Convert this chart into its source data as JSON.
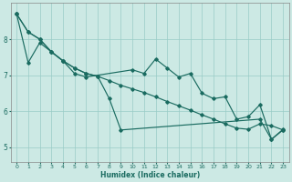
{
  "xlabel": "Humidex (Indice chaleur)",
  "xlim": [
    -0.5,
    23.5
  ],
  "ylim": [
    4.6,
    9.0
  ],
  "yticks": [
    5,
    6,
    7,
    8
  ],
  "xticks": [
    0,
    1,
    2,
    3,
    4,
    5,
    6,
    7,
    8,
    9,
    10,
    11,
    12,
    13,
    14,
    15,
    16,
    17,
    18,
    19,
    20,
    21,
    22,
    23
  ],
  "background_color": "#cce9e4",
  "grid_color": "#99ccc6",
  "line_color": "#1a6b60",
  "line1_x": [
    0,
    1,
    2,
    3,
    4,
    5,
    6,
    10,
    11,
    12,
    13,
    14,
    15,
    16,
    17,
    18,
    19,
    20,
    21,
    22,
    23
  ],
  "line1_y": [
    8.7,
    8.2,
    8.0,
    7.65,
    7.4,
    7.05,
    6.95,
    7.15,
    7.05,
    7.45,
    7.2,
    6.95,
    7.05,
    6.5,
    6.35,
    6.4,
    5.78,
    5.85,
    6.18,
    5.22,
    5.5
  ],
  "line2_x": [
    0,
    1,
    2,
    3,
    4,
    5,
    6,
    7,
    8,
    9,
    21,
    22,
    23
  ],
  "line2_y": [
    8.7,
    7.35,
    7.9,
    7.65,
    7.4,
    7.2,
    7.05,
    6.97,
    6.35,
    5.48,
    5.78,
    5.22,
    5.48
  ],
  "line3_x": [
    0,
    1,
    2,
    3,
    4,
    5,
    6,
    7,
    8,
    9,
    10,
    11,
    12,
    13,
    14,
    15,
    16,
    17,
    18,
    19,
    20,
    21,
    22,
    23
  ],
  "line3_y": [
    8.7,
    8.2,
    8.0,
    7.65,
    7.4,
    7.2,
    7.05,
    6.97,
    6.85,
    6.72,
    6.62,
    6.52,
    6.4,
    6.27,
    6.15,
    6.03,
    5.9,
    5.78,
    5.65,
    5.53,
    5.5,
    5.65,
    5.6,
    5.48
  ]
}
